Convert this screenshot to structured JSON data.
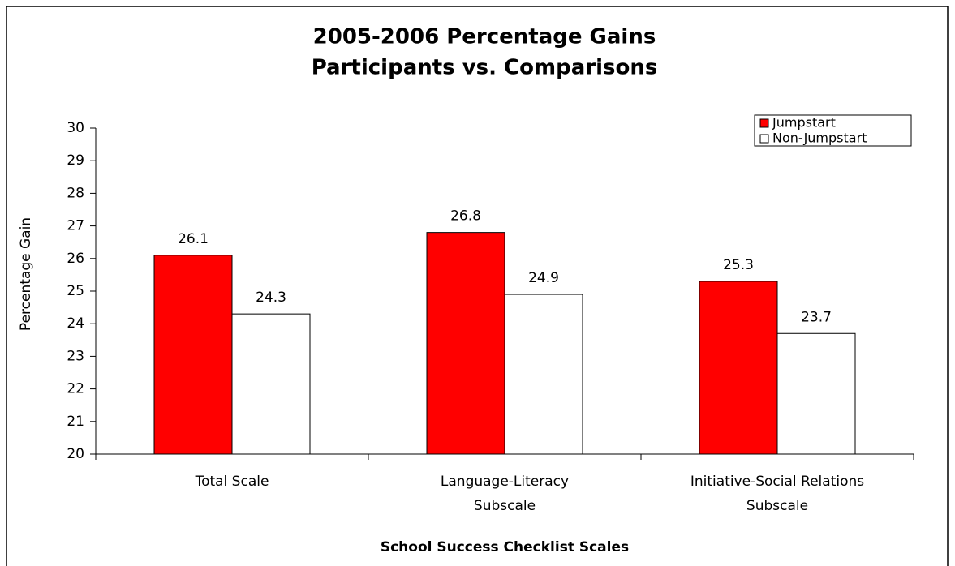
{
  "chart_data": {
    "type": "bar",
    "title": [
      "2005-2006 Percentage Gains",
      "Participants vs. Comparisons"
    ],
    "x_label": "School Success Checklist Scales",
    "y_label": "Percentage Gain",
    "categories": [
      [
        "Total Scale"
      ],
      [
        "Language-Literacy",
        "Subscale"
      ],
      [
        "Initiative-Social Relations",
        "Subscale"
      ]
    ],
    "series": [
      {
        "name": "Jumpstart",
        "color": "#ff0000",
        "values": [
          26.1,
          26.8,
          25.3
        ]
      },
      {
        "name": "Non-Jumpstart",
        "color": "#ffffff",
        "values": [
          24.3,
          24.9,
          23.7
        ]
      }
    ],
    "ylim": [
      20,
      30
    ],
    "yticks": [
      20,
      21,
      22,
      23,
      24,
      25,
      26,
      27,
      28,
      29,
      30
    ],
    "grid": false,
    "legend": "top-right"
  }
}
